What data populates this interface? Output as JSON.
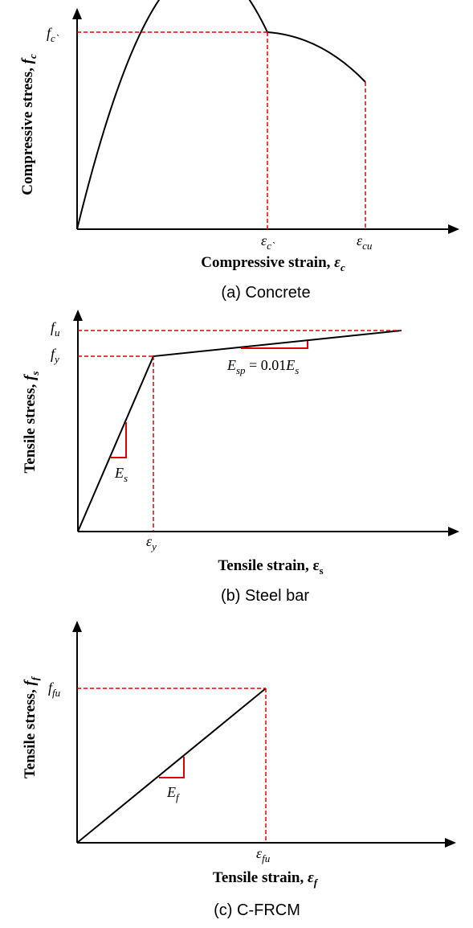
{
  "panels": {
    "concrete": {
      "y_axis_label": "Compressive stress,",
      "y_axis_symbol": "f",
      "y_axis_sub": "c",
      "peak_stress_label": "f",
      "peak_stress_sub": "c`",
      "peak_strain_label": "ε",
      "peak_strain_sub": "c`",
      "ultimate_strain_label": "ε",
      "ultimate_strain_sub": "cu",
      "x_axis_label": "Compressive strain,",
      "x_axis_symbol": "ε",
      "x_axis_sub": "c",
      "caption": "(a)  Concrete"
    },
    "steel": {
      "y_axis_label": "Tensile stress,",
      "y_axis_symbol": "f",
      "y_axis_sub": "s",
      "ultimate_stress_label": "f",
      "ultimate_stress_sub": "u",
      "yield_stress_label": "f",
      "yield_stress_sub": "y",
      "yield_strain_label": "ε",
      "yield_strain_sub": "y",
      "modulus_label": "E",
      "modulus_sub": "s",
      "hardening_label_E": "E",
      "hardening_label_sub": "sp",
      "hardening_label_eq": " = 0.01",
      "hardening_label_E2": "E",
      "hardening_label_sub2": "s",
      "x_axis_label": "Tensile strain, ε",
      "x_axis_sub": "s",
      "caption": "(b)  Steel  bar"
    },
    "frcm": {
      "y_axis_label": "Tensile stress,",
      "y_axis_symbol": "f",
      "y_axis_sub": "f",
      "ultimate_stress_label": "f",
      "ultimate_stress_sub": "fu",
      "ultimate_strain_label": "ε",
      "ultimate_strain_sub": "fu",
      "modulus_label": "E",
      "modulus_sub": "f",
      "x_axis_label": "Tensile strain,",
      "x_axis_symbol": "ε",
      "x_axis_sub": "f",
      "caption": "(c)  C-FRCM"
    }
  }
}
